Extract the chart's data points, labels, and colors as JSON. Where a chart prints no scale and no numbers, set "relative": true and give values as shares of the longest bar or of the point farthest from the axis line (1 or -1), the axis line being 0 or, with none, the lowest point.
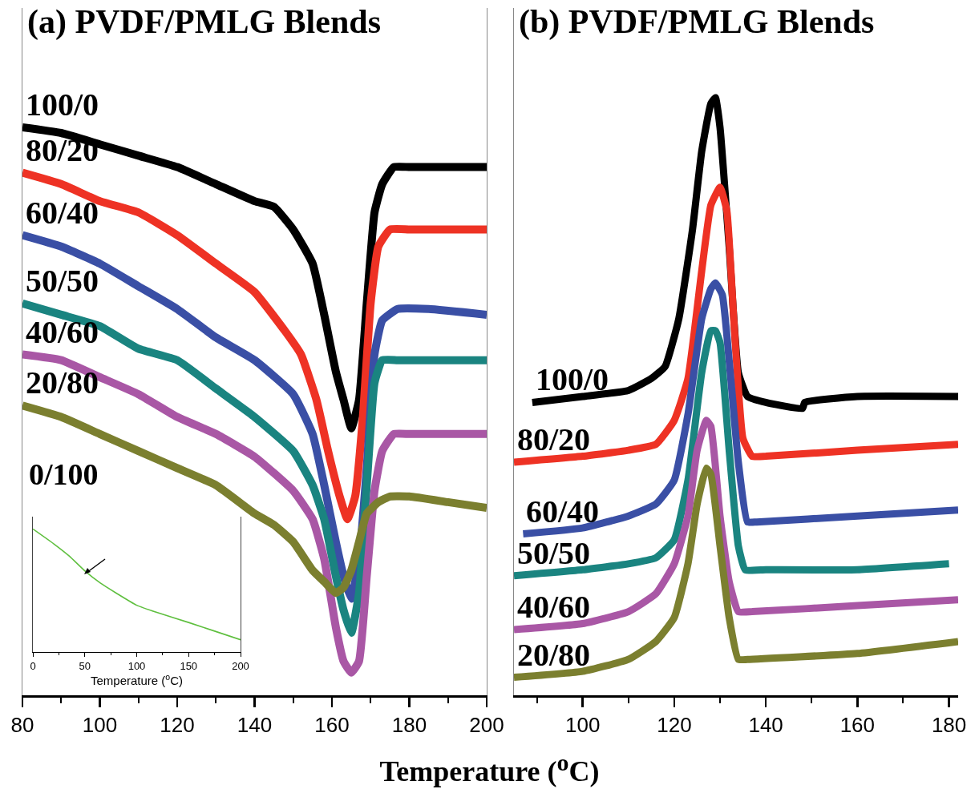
{
  "chart_data": [
    {
      "type": "line",
      "title": "(a) PVDF/PMLG Blends",
      "xlabel": "Temperature ($^{o}$C)",
      "relative": true,
      "xlim": [
        80,
        200
      ],
      "xticks": [
        80,
        100,
        120,
        140,
        160,
        180,
        200
      ],
      "series": [
        {
          "name": "100/0",
          "color": "#000000",
          "x": [
            80,
            90,
            100,
            110,
            120,
            130,
            140,
            145,
            150,
            155,
            158,
            161,
            163,
            165,
            167,
            169,
            171,
            173,
            176,
            180,
            190,
            200
          ],
          "values": [
            1.0,
            0.99,
            0.97,
            0.95,
            0.93,
            0.9,
            0.87,
            0.86,
            0.82,
            0.76,
            0.67,
            0.57,
            0.52,
            0.47,
            0.52,
            0.69,
            0.85,
            0.9,
            0.93,
            0.93,
            0.93,
            0.93
          ]
        },
        {
          "name": "80/20",
          "color": "#ee3224",
          "x": [
            80,
            90,
            100,
            110,
            120,
            130,
            140,
            148,
            152,
            156,
            159,
            162,
            164,
            166,
            168,
            170,
            172,
            175,
            180,
            190,
            200
          ],
          "values": [
            0.92,
            0.9,
            0.87,
            0.85,
            0.81,
            0.76,
            0.71,
            0.64,
            0.6,
            0.52,
            0.43,
            0.35,
            0.31,
            0.35,
            0.49,
            0.69,
            0.79,
            0.82,
            0.82,
            0.82,
            0.82
          ]
        },
        {
          "name": "60/40",
          "color": "#3a4fa5",
          "x": [
            80,
            90,
            100,
            110,
            120,
            130,
            140,
            150,
            155,
            158,
            161,
            163,
            165,
            167,
            169,
            171,
            173,
            177,
            185,
            200
          ],
          "values": [
            0.81,
            0.79,
            0.76,
            0.72,
            0.68,
            0.63,
            0.59,
            0.53,
            0.46,
            0.37,
            0.27,
            0.21,
            0.17,
            0.24,
            0.4,
            0.6,
            0.66,
            0.68,
            0.68,
            0.67
          ]
        },
        {
          "name": "50/50",
          "color": "#1a8480",
          "x": [
            80,
            90,
            100,
            110,
            120,
            130,
            140,
            150,
            155,
            158,
            161,
            163,
            165,
            167,
            169,
            171,
            173,
            177,
            185,
            200
          ],
          "values": [
            0.69,
            0.67,
            0.65,
            0.61,
            0.59,
            0.54,
            0.49,
            0.43,
            0.37,
            0.31,
            0.21,
            0.15,
            0.11,
            0.18,
            0.37,
            0.55,
            0.59,
            0.59,
            0.59,
            0.59
          ]
        },
        {
          "name": "40/60",
          "color": "#a957a5",
          "x": [
            80,
            90,
            100,
            110,
            120,
            130,
            140,
            150,
            155,
            158,
            161,
            163,
            165,
            167,
            169,
            171,
            173,
            176,
            180,
            190,
            200
          ],
          "values": [
            0.6,
            0.59,
            0.56,
            0.53,
            0.49,
            0.46,
            0.42,
            0.36,
            0.31,
            0.24,
            0.12,
            0.06,
            0.04,
            0.06,
            0.21,
            0.36,
            0.43,
            0.46,
            0.46,
            0.46,
            0.46
          ]
        },
        {
          "name": "20/80",
          "color": "#7b7f2f",
          "x": [
            80,
            90,
            100,
            110,
            120,
            130,
            140,
            145,
            150,
            155,
            158,
            161,
            163,
            165,
            167,
            169,
            172,
            175,
            180,
            190,
            200
          ],
          "values": [
            0.51,
            0.49,
            0.46,
            0.43,
            0.4,
            0.37,
            0.32,
            0.3,
            0.27,
            0.22,
            0.2,
            0.18,
            0.19,
            0.22,
            0.27,
            0.32,
            0.34,
            0.35,
            0.35,
            0.34,
            0.33
          ]
        }
      ]
    },
    {
      "type": "line",
      "title": "(b) PVDF/PMLG Blends",
      "relative": true,
      "xlim": [
        85,
        182
      ],
      "xticks": [
        100,
        120,
        140,
        160,
        180
      ],
      "series": [
        {
          "name": "100/0",
          "color": "#000000",
          "x": [
            89,
            100,
            110,
            115,
            118,
            121,
            124,
            126,
            128,
            129,
            130,
            132,
            134,
            136,
            140,
            148,
            148.5,
            160,
            182
          ],
          "values": [
            0.49,
            0.5,
            0.51,
            0.53,
            0.55,
            0.63,
            0.78,
            0.91,
            0.99,
            1.0,
            0.95,
            0.75,
            0.54,
            0.5,
            0.49,
            0.48,
            0.49,
            0.5,
            0.5
          ]
        },
        {
          "name": "80/20",
          "color": "#ee3224",
          "x": [
            85,
            100,
            110,
            116,
            120,
            123,
            126,
            128,
            130,
            131.5,
            133,
            135,
            137,
            140,
            160,
            182
          ],
          "values": [
            0.39,
            0.4,
            0.41,
            0.42,
            0.46,
            0.53,
            0.71,
            0.82,
            0.85,
            0.81,
            0.63,
            0.43,
            0.4,
            0.4,
            0.41,
            0.42
          ]
        },
        {
          "name": "60/40",
          "color": "#3a4fa5",
          "x": [
            87,
            100,
            110,
            116,
            120,
            123,
            126,
            128,
            129,
            130.5,
            132,
            134,
            136,
            138,
            160,
            182
          ],
          "values": [
            0.27,
            0.28,
            0.3,
            0.32,
            0.36,
            0.47,
            0.63,
            0.68,
            0.69,
            0.67,
            0.56,
            0.39,
            0.29,
            0.29,
            0.3,
            0.31
          ]
        },
        {
          "name": "50/50",
          "color": "#1a8480",
          "x": [
            85,
            100,
            110,
            116,
            120,
            123,
            126,
            128,
            129,
            130,
            132,
            134,
            135.5,
            140,
            160,
            180
          ],
          "values": [
            0.2,
            0.21,
            0.22,
            0.23,
            0.26,
            0.36,
            0.54,
            0.61,
            0.61,
            0.59,
            0.41,
            0.25,
            0.21,
            0.21,
            0.21,
            0.22
          ]
        },
        {
          "name": "40/60",
          "color": "#a957a5",
          "x": [
            85,
            100,
            110,
            116,
            120,
            123,
            125,
            127,
            128,
            130,
            132,
            134,
            137,
            160,
            182
          ],
          "values": [
            0.11,
            0.12,
            0.14,
            0.17,
            0.22,
            0.3,
            0.41,
            0.46,
            0.45,
            0.3,
            0.19,
            0.14,
            0.14,
            0.15,
            0.16
          ]
        },
        {
          "name": "20/80",
          "color": "#7b7f2f",
          "x": [
            85,
            100,
            110,
            116,
            120,
            123,
            125,
            127,
            128,
            130,
            132,
            134,
            136,
            160,
            182
          ],
          "values": [
            0.03,
            0.04,
            0.06,
            0.09,
            0.13,
            0.22,
            0.32,
            0.38,
            0.37,
            0.25,
            0.13,
            0.06,
            0.06,
            0.07,
            0.09
          ]
        }
      ]
    },
    {
      "type": "line",
      "title": "0/100",
      "xlabel": "Temperature ($^{o}$C)",
      "relative": true,
      "xlim": [
        0,
        200
      ],
      "xticks": [
        0,
        50,
        100,
        150,
        200
      ],
      "series": [
        {
          "color": "#5fbf3f",
          "x": [
            0,
            20,
            35,
            50,
            65,
            80,
            100,
            120,
            150,
            175,
            200
          ],
          "values": [
            1.0,
            0.88,
            0.78,
            0.66,
            0.56,
            0.48,
            0.38,
            0.32,
            0.24,
            0.17,
            0.1
          ]
        }
      ]
    }
  ]
}
